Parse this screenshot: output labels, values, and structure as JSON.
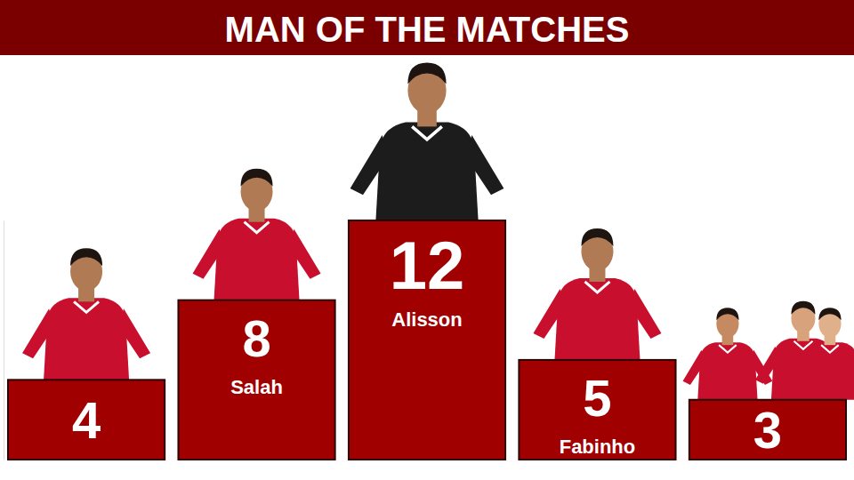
{
  "chart_data": {
    "type": "bar",
    "title": "MAN OF THE MATCHES",
    "categories": [
      null,
      "Salah",
      "Alisson",
      "Fabinho",
      null
    ],
    "values": [
      4,
      8,
      12,
      5,
      3
    ],
    "color": "#a00000",
    "ylim": [
      0,
      12
    ],
    "yticks": [],
    "grid": false,
    "data_labels": true,
    "tick_labels": false
  }
}
